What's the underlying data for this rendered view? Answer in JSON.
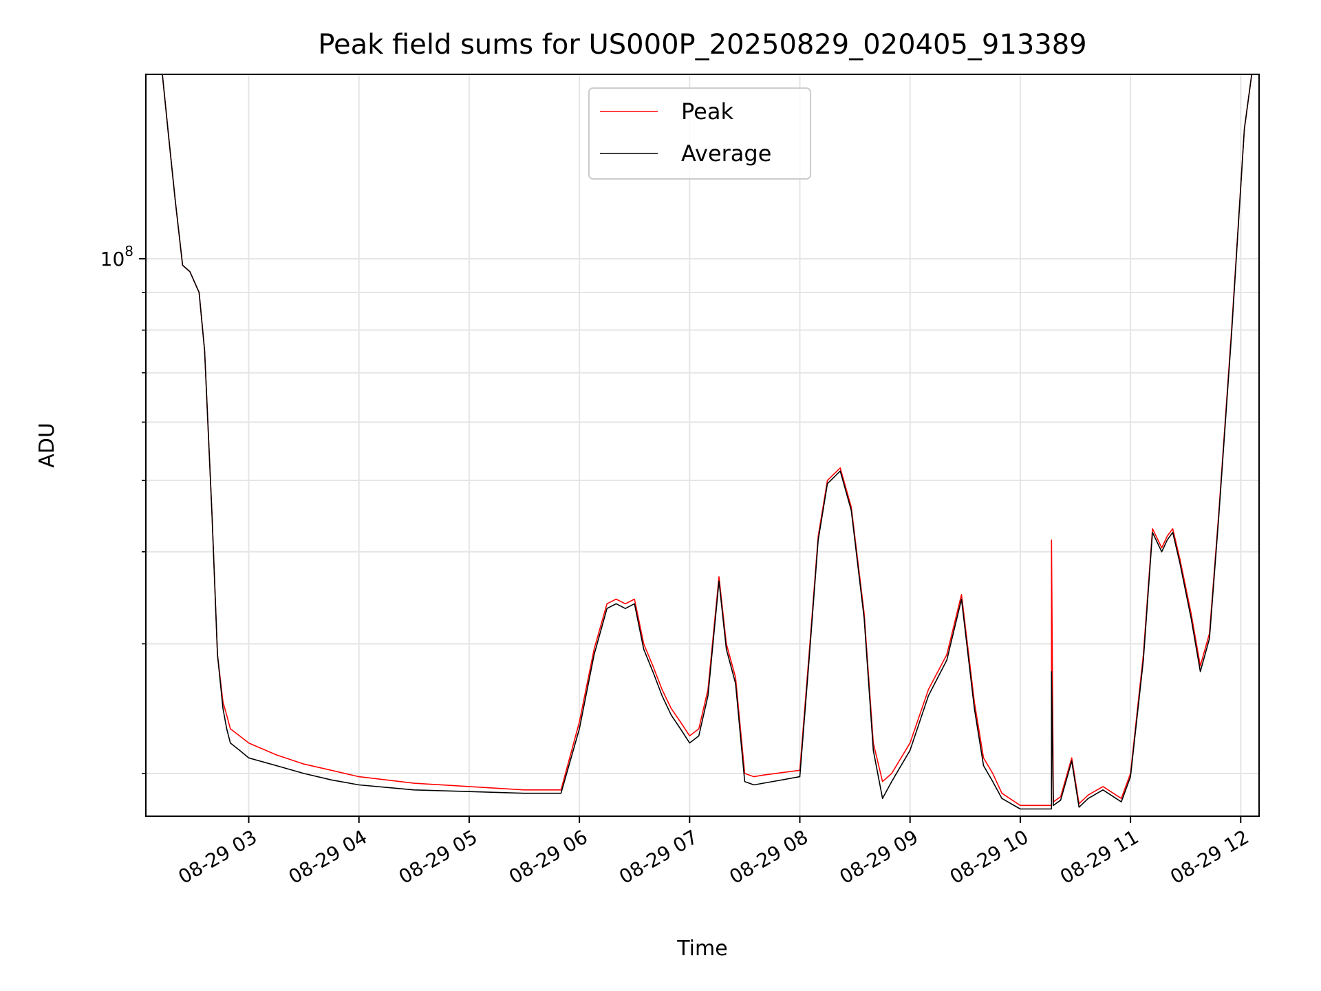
{
  "chart_data": {
    "type": "line",
    "title": "Peak field sums for US000P_20250829_020405_913389",
    "xlabel": "Time",
    "ylabel": "ADU",
    "yscale": "log",
    "xlim": [
      "2025-08-29 02:04",
      "2025-08-29 12:10"
    ],
    "ylim": [
      17500000,
      178000000
    ],
    "x_tick_labels": [
      "08-29 03",
      "08-29 04",
      "08-29 05",
      "08-29 06",
      "08-29 07",
      "08-29 08",
      "08-29 09",
      "08-29 10",
      "08-29 11",
      "08-29 12"
    ],
    "x_tick_values": [
      "2025-08-29 03:00",
      "2025-08-29 04:00",
      "2025-08-29 05:00",
      "2025-08-29 06:00",
      "2025-08-29 07:00",
      "2025-08-29 08:00",
      "2025-08-29 09:00",
      "2025-08-29 10:00",
      "2025-08-29 11:00",
      "2025-08-29 12:00"
    ],
    "y_tick_base": "10",
    "y_tick_exponent": "8",
    "y_tick_value": 100000000,
    "grid": true,
    "legend_position": "top-center",
    "series": [
      {
        "name": "Peak",
        "color": "#ff0000",
        "x": [
          "2025-08-29 02:04",
          "2025-08-29 02:13",
          "2025-08-29 02:16",
          "2025-08-29 02:20",
          "2025-08-29 02:24",
          "2025-08-29 02:28",
          "2025-08-29 02:33",
          "2025-08-29 02:36",
          "2025-08-29 02:40",
          "2025-08-29 02:43",
          "2025-08-29 02:46",
          "2025-08-29 02:48",
          "2025-08-29 02:50",
          "2025-08-29 02:55",
          "2025-08-29 03:00",
          "2025-08-29 03:15",
          "2025-08-29 03:30",
          "2025-08-29 03:45",
          "2025-08-29 04:00",
          "2025-08-29 04:30",
          "2025-08-29 05:00",
          "2025-08-29 05:30",
          "2025-08-29 05:50",
          "2025-08-29 06:00",
          "2025-08-29 06:08",
          "2025-08-29 06:15",
          "2025-08-29 06:20",
          "2025-08-29 06:25",
          "2025-08-29 06:30",
          "2025-08-29 06:35",
          "2025-08-29 06:40",
          "2025-08-29 06:45",
          "2025-08-29 06:50",
          "2025-08-29 06:55",
          "2025-08-29 07:00",
          "2025-08-29 07:05",
          "2025-08-29 07:10",
          "2025-08-29 07:16",
          "2025-08-29 07:20",
          "2025-08-29 07:25",
          "2025-08-29 07:30",
          "2025-08-29 07:35",
          "2025-08-29 07:40",
          "2025-08-29 08:00",
          "2025-08-29 08:05",
          "2025-08-29 08:10",
          "2025-08-29 08:15",
          "2025-08-29 08:22",
          "2025-08-29 08:28",
          "2025-08-29 08:35",
          "2025-08-29 08:40",
          "2025-08-29 08:45",
          "2025-08-29 08:50",
          "2025-08-29 09:00",
          "2025-08-29 09:10",
          "2025-08-29 09:20",
          "2025-08-29 09:28",
          "2025-08-29 09:35",
          "2025-08-29 09:40",
          "2025-08-29 09:45",
          "2025-08-29 09:50",
          "2025-08-29 10:00",
          "2025-08-29 10:10",
          "2025-08-29 10:15",
          "2025-08-29 10:17",
          "2025-08-29 10:17",
          "2025-08-29 10:18",
          "2025-08-29 10:22",
          "2025-08-29 10:28",
          "2025-08-29 10:32",
          "2025-08-29 10:37",
          "2025-08-29 10:45",
          "2025-08-29 10:55",
          "2025-08-29 11:00",
          "2025-08-29 11:07",
          "2025-08-29 11:12",
          "2025-08-29 11:17",
          "2025-08-29 11:20",
          "2025-08-29 11:23",
          "2025-08-29 11:27",
          "2025-08-29 11:33",
          "2025-08-29 11:38",
          "2025-08-29 11:43",
          "2025-08-29 11:48",
          "2025-08-29 11:55",
          "2025-08-29 12:02",
          "2025-08-29 12:06"
        ],
        "y": [
          178000000,
          178000000,
          150000000,
          120000000,
          98000000,
          96000000,
          90000000,
          75000000,
          45000000,
          29000000,
          25000000,
          24000000,
          23000000,
          22500000,
          22000000,
          21200000,
          20600000,
          20200000,
          19800000,
          19400000,
          19200000,
          19000000,
          19000000,
          23500000,
          29500000,
          34000000,
          34500000,
          34000000,
          34500000,
          30000000,
          28000000,
          26000000,
          24500000,
          23500000,
          22500000,
          23000000,
          26000000,
          37000000,
          30000000,
          27000000,
          20000000,
          19800000,
          19900000,
          20200000,
          29000000,
          42000000,
          50000000,
          52000000,
          46000000,
          33000000,
          22000000,
          19500000,
          20000000,
          22000000,
          26000000,
          29000000,
          35000000,
          25000000,
          21000000,
          20000000,
          18800000,
          18100000,
          18100000,
          18100000,
          18100000,
          41500000,
          18300000,
          18600000,
          21000000,
          18200000,
          18700000,
          19200000,
          18500000,
          20000000,
          29000000,
          43000000,
          40500000,
          42000000,
          43000000,
          39000000,
          33000000,
          28000000,
          31000000,
          45000000,
          80000000,
          150000000,
          178000000
        ]
      },
      {
        "name": "Average",
        "color": "#000000",
        "x": [
          "2025-08-29 02:04",
          "2025-08-29 02:13",
          "2025-08-29 02:16",
          "2025-08-29 02:20",
          "2025-08-29 02:24",
          "2025-08-29 02:28",
          "2025-08-29 02:33",
          "2025-08-29 02:36",
          "2025-08-29 02:40",
          "2025-08-29 02:43",
          "2025-08-29 02:46",
          "2025-08-29 02:48",
          "2025-08-29 02:50",
          "2025-08-29 02:55",
          "2025-08-29 03:00",
          "2025-08-29 03:15",
          "2025-08-29 03:30",
          "2025-08-29 03:45",
          "2025-08-29 04:00",
          "2025-08-29 04:30",
          "2025-08-29 05:00",
          "2025-08-29 05:30",
          "2025-08-29 05:50",
          "2025-08-29 06:00",
          "2025-08-29 06:08",
          "2025-08-29 06:15",
          "2025-08-29 06:20",
          "2025-08-29 06:25",
          "2025-08-29 06:30",
          "2025-08-29 06:35",
          "2025-08-29 06:40",
          "2025-08-29 06:45",
          "2025-08-29 06:50",
          "2025-08-29 06:55",
          "2025-08-29 07:00",
          "2025-08-29 07:05",
          "2025-08-29 07:10",
          "2025-08-29 07:16",
          "2025-08-29 07:20",
          "2025-08-29 07:25",
          "2025-08-29 07:30",
          "2025-08-29 07:35",
          "2025-08-29 07:40",
          "2025-08-29 08:00",
          "2025-08-29 08:05",
          "2025-08-29 08:10",
          "2025-08-29 08:15",
          "2025-08-29 08:22",
          "2025-08-29 08:28",
          "2025-08-29 08:35",
          "2025-08-29 08:40",
          "2025-08-29 08:45",
          "2025-08-29 08:50",
          "2025-08-29 09:00",
          "2025-08-29 09:10",
          "2025-08-29 09:20",
          "2025-08-29 09:28",
          "2025-08-29 09:35",
          "2025-08-29 09:40",
          "2025-08-29 09:45",
          "2025-08-29 09:50",
          "2025-08-29 10:00",
          "2025-08-29 10:10",
          "2025-08-29 10:15",
          "2025-08-29 10:17",
          "2025-08-29 10:17",
          "2025-08-29 10:18",
          "2025-08-29 10:22",
          "2025-08-29 10:28",
          "2025-08-29 10:32",
          "2025-08-29 10:37",
          "2025-08-29 10:45",
          "2025-08-29 10:55",
          "2025-08-29 11:00",
          "2025-08-29 11:07",
          "2025-08-29 11:12",
          "2025-08-29 11:17",
          "2025-08-29 11:20",
          "2025-08-29 11:23",
          "2025-08-29 11:27",
          "2025-08-29 11:33",
          "2025-08-29 11:38",
          "2025-08-29 11:43",
          "2025-08-29 11:48",
          "2025-08-29 11:55",
          "2025-08-29 12:02",
          "2025-08-29 12:06"
        ],
        "y": [
          178000000,
          178000000,
          150000000,
          120000000,
          98000000,
          96000000,
          90000000,
          75000000,
          45000000,
          29000000,
          24500000,
          23000000,
          22000000,
          21500000,
          21000000,
          20500000,
          20000000,
          19600000,
          19300000,
          19000000,
          18900000,
          18800000,
          18800000,
          23000000,
          29000000,
          33500000,
          34000000,
          33500000,
          34000000,
          29500000,
          27500000,
          25500000,
          24000000,
          23000000,
          22000000,
          22500000,
          25500000,
          36500000,
          29500000,
          26500000,
          19500000,
          19300000,
          19400000,
          19800000,
          28500000,
          41500000,
          49500000,
          51500000,
          45500000,
          32500000,
          21500000,
          18500000,
          19500000,
          21500000,
          25500000,
          28500000,
          34500000,
          24500000,
          20500000,
          19500000,
          18500000,
          17900000,
          17900000,
          17900000,
          17900000,
          27500000,
          18100000,
          18400000,
          20800000,
          18000000,
          18500000,
          19000000,
          18300000,
          19800000,
          28500000,
          42500000,
          40000000,
          41500000,
          42500000,
          38500000,
          32500000,
          27500000,
          30500000,
          44500000,
          79000000,
          150000000,
          178000000
        ]
      }
    ]
  }
}
